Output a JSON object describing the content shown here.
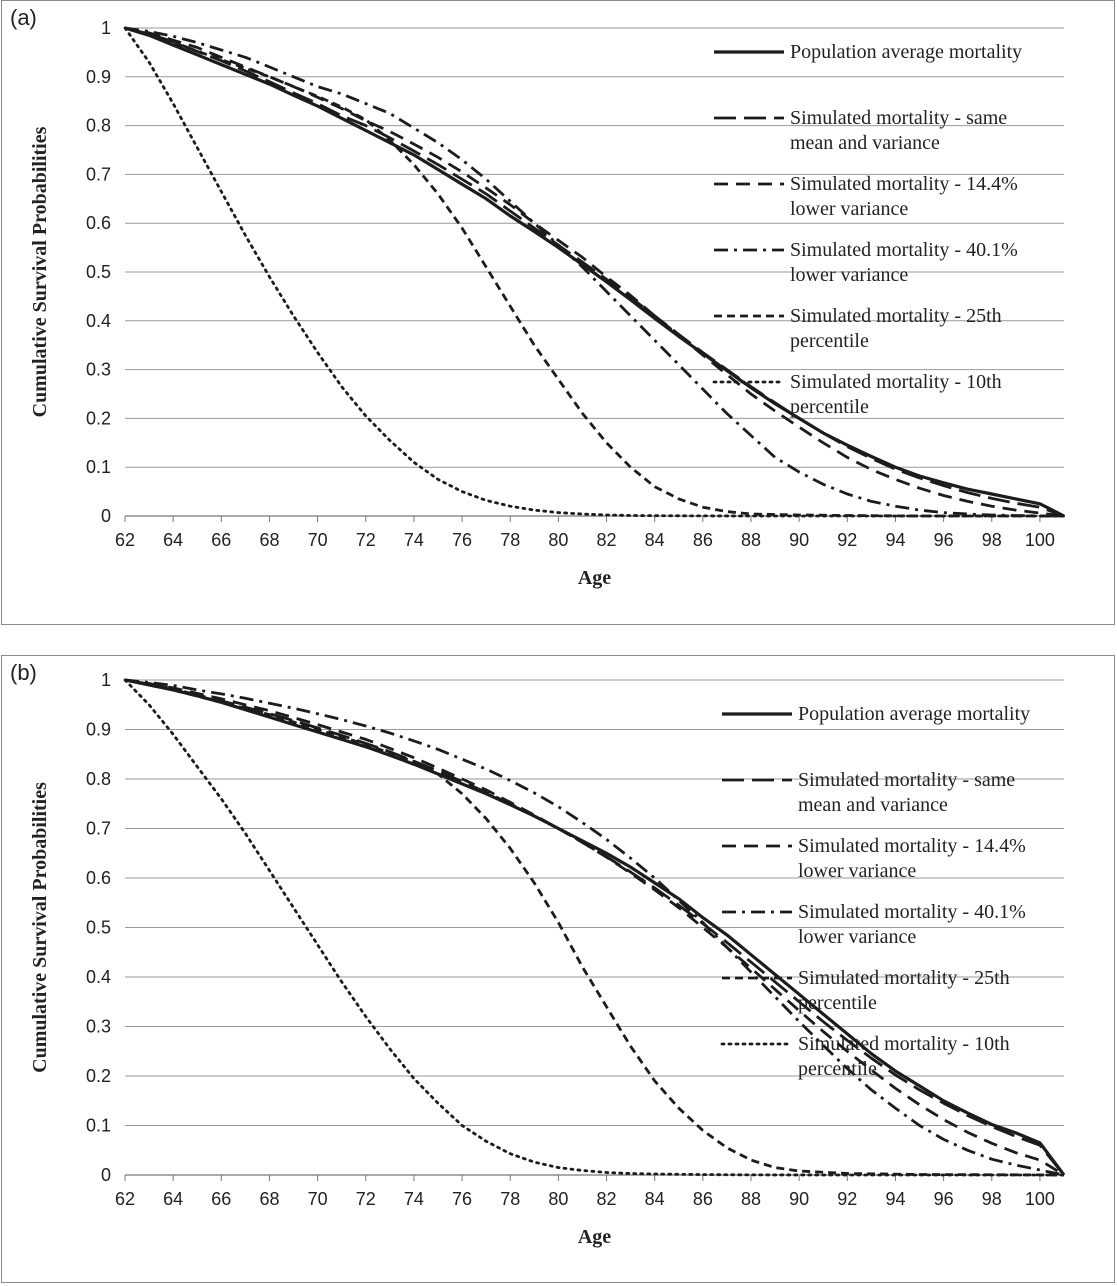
{
  "chart_data": [
    {
      "panel_label": "(a)",
      "type": "line",
      "xlabel": "Age",
      "ylabel": "Cumulative  Survival  Probabilities",
      "xlim": [
        62,
        101
      ],
      "ylim": [
        0,
        1
      ],
      "xticks": [
        "62",
        "64",
        "66",
        "68",
        "70",
        "72",
        "74",
        "76",
        "78",
        "80",
        "82",
        "84",
        "86",
        "88",
        "90",
        "92",
        "94",
        "96",
        "98",
        "100"
      ],
      "yticks": [
        "0",
        "0.1",
        "0.2",
        "0.3",
        "0.4",
        "0.5",
        "0.6",
        "0.7",
        "0.8",
        "0.9",
        "1"
      ],
      "grid": true,
      "legend_position": "top-right",
      "series": [
        {
          "name": "Population average mortality",
          "lines": [
            "Population average mortality"
          ],
          "style": "solid",
          "x": [
            62,
            63,
            64,
            65,
            66,
            67,
            68,
            69,
            70,
            71,
            72,
            73,
            74,
            75,
            76,
            77,
            78,
            79,
            80,
            81,
            82,
            83,
            84,
            85,
            86,
            87,
            88,
            89,
            90,
            91,
            92,
            93,
            94,
            95,
            96,
            97,
            98,
            99,
            100,
            101
          ],
          "y": [
            1.0,
            0.985,
            0.965,
            0.945,
            0.925,
            0.905,
            0.885,
            0.862,
            0.84,
            0.815,
            0.79,
            0.765,
            0.74,
            0.71,
            0.68,
            0.65,
            0.615,
            0.583,
            0.55,
            0.515,
            0.48,
            0.443,
            0.405,
            0.368,
            0.333,
            0.298,
            0.263,
            0.23,
            0.2,
            0.17,
            0.145,
            0.122,
            0.1,
            0.082,
            0.068,
            0.055,
            0.045,
            0.035,
            0.025,
            0.0
          ]
        },
        {
          "name": "Simulated mortality - same mean and variance",
          "lines": [
            "Simulated mortality - same",
            "mean and variance"
          ],
          "style": "longdash",
          "x": [
            62,
            63,
            64,
            65,
            66,
            67,
            68,
            69,
            70,
            71,
            72,
            73,
            74,
            75,
            76,
            77,
            78,
            79,
            80,
            81,
            82,
            83,
            84,
            85,
            86,
            87,
            88,
            89,
            90,
            91,
            92,
            93,
            94,
            95,
            96,
            97,
            98,
            99,
            100,
            101
          ],
          "y": [
            1.0,
            0.988,
            0.972,
            0.952,
            0.933,
            0.912,
            0.89,
            0.867,
            0.845,
            0.82,
            0.8,
            0.775,
            0.748,
            0.72,
            0.69,
            0.66,
            0.625,
            0.59,
            0.555,
            0.52,
            0.485,
            0.448,
            0.41,
            0.372,
            0.335,
            0.3,
            0.265,
            0.232,
            0.2,
            0.17,
            0.142,
            0.118,
            0.096,
            0.078,
            0.062,
            0.048,
            0.036,
            0.026,
            0.018,
            0.0
          ]
        },
        {
          "name": "Simulated mortality - 14.4% lower variance",
          "lines": [
            "Simulated mortality - 14.4%",
            "lower variance"
          ],
          "style": "dash",
          "x": [
            62,
            63,
            64,
            65,
            66,
            67,
            68,
            69,
            70,
            71,
            72,
            73,
            74,
            75,
            76,
            77,
            78,
            79,
            80,
            81,
            82,
            83,
            84,
            85,
            86,
            87,
            88,
            89,
            90,
            91,
            92,
            93,
            94,
            95,
            96,
            97,
            98,
            99,
            100,
            101
          ],
          "y": [
            1.0,
            0.99,
            0.975,
            0.96,
            0.94,
            0.92,
            0.9,
            0.88,
            0.858,
            0.835,
            0.81,
            0.788,
            0.762,
            0.735,
            0.705,
            0.672,
            0.638,
            0.6,
            0.565,
            0.53,
            0.49,
            0.452,
            0.41,
            0.37,
            0.33,
            0.29,
            0.25,
            0.215,
            0.182,
            0.15,
            0.12,
            0.095,
            0.075,
            0.057,
            0.042,
            0.03,
            0.02,
            0.012,
            0.006,
            0.0
          ]
        },
        {
          "name": "Simulated mortality - 40.1% lower variance",
          "lines": [
            "Simulated mortality - 40.1%",
            "lower variance"
          ],
          "style": "dashdot",
          "x": [
            62,
            63,
            64,
            65,
            66,
            67,
            68,
            69,
            70,
            71,
            72,
            73,
            74,
            75,
            76,
            77,
            78,
            79,
            80,
            81,
            82,
            83,
            84,
            85,
            86,
            87,
            88,
            89,
            90,
            91,
            92,
            93,
            94,
            95,
            96,
            97,
            98,
            99,
            100,
            101
          ],
          "y": [
            1.0,
            0.993,
            0.983,
            0.97,
            0.955,
            0.94,
            0.92,
            0.9,
            0.88,
            0.865,
            0.845,
            0.825,
            0.795,
            0.765,
            0.73,
            0.69,
            0.645,
            0.6,
            0.555,
            0.51,
            0.46,
            0.41,
            0.36,
            0.31,
            0.26,
            0.21,
            0.165,
            0.12,
            0.09,
            0.065,
            0.045,
            0.03,
            0.02,
            0.012,
            0.007,
            0.004,
            0.002,
            0.001,
            0.0,
            0.0
          ]
        },
        {
          "name": "Simulated mortality - 25th percentile",
          "lines": [
            "Simulated mortality - 25th",
            "percentile"
          ],
          "style": "shortdash",
          "x": [
            62,
            64,
            66,
            68,
            70,
            71,
            72,
            73,
            74,
            75,
            76,
            77,
            78,
            79,
            80,
            81,
            82,
            83,
            84,
            85,
            86,
            87,
            88,
            90,
            92,
            95,
            101
          ],
          "y": [
            1.0,
            0.97,
            0.935,
            0.9,
            0.86,
            0.838,
            0.812,
            0.77,
            0.72,
            0.66,
            0.59,
            0.51,
            0.43,
            0.35,
            0.28,
            0.21,
            0.15,
            0.1,
            0.06,
            0.035,
            0.018,
            0.009,
            0.004,
            0.002,
            0.001,
            0.0,
            0.0
          ]
        },
        {
          "name": "Simulated mortality - 10th percentile",
          "lines": [
            "Simulated mortality - 10th",
            "percentile"
          ],
          "style": "dotted",
          "x": [
            62,
            63,
            64,
            65,
            66,
            67,
            68,
            69,
            70,
            71,
            72,
            73,
            74,
            75,
            76,
            77,
            78,
            79,
            80,
            81,
            82,
            83,
            84,
            86,
            88,
            92,
            101
          ],
          "y": [
            1.0,
            0.93,
            0.845,
            0.755,
            0.665,
            0.575,
            0.49,
            0.41,
            0.335,
            0.265,
            0.205,
            0.155,
            0.11,
            0.075,
            0.05,
            0.032,
            0.02,
            0.012,
            0.007,
            0.004,
            0.002,
            0.001,
            0.0006,
            0.0002,
            0.0,
            0.0,
            0.0
          ]
        }
      ]
    },
    {
      "panel_label": "(b)",
      "type": "line",
      "xlabel": "Age",
      "ylabel": "Cumulative  Survival  Probabilities",
      "xlim": [
        62,
        101
      ],
      "ylim": [
        0,
        1
      ],
      "xticks": [
        "62",
        "64",
        "66",
        "68",
        "70",
        "72",
        "74",
        "76",
        "78",
        "80",
        "82",
        "84",
        "86",
        "88",
        "90",
        "92",
        "94",
        "96",
        "98",
        "100"
      ],
      "yticks": [
        "0",
        "0.1",
        "0.2",
        "0.3",
        "0.4",
        "0.5",
        "0.6",
        "0.7",
        "0.8",
        "0.9",
        "1"
      ],
      "grid": true,
      "legend_position": "top-right",
      "series": [
        {
          "name": "Population average mortality",
          "lines": [
            "Population average mortality"
          ],
          "style": "solid",
          "x": [
            62,
            63,
            64,
            65,
            66,
            67,
            68,
            69,
            70,
            71,
            72,
            73,
            74,
            75,
            76,
            77,
            78,
            79,
            80,
            81,
            82,
            83,
            84,
            85,
            86,
            87,
            88,
            89,
            90,
            91,
            92,
            93,
            94,
            95,
            96,
            97,
            98,
            99,
            100,
            101
          ],
          "y": [
            1.0,
            0.99,
            0.98,
            0.968,
            0.955,
            0.94,
            0.925,
            0.91,
            0.895,
            0.88,
            0.865,
            0.848,
            0.83,
            0.81,
            0.79,
            0.77,
            0.748,
            0.725,
            0.7,
            0.675,
            0.65,
            0.622,
            0.59,
            0.558,
            0.52,
            0.485,
            0.445,
            0.405,
            0.365,
            0.325,
            0.285,
            0.245,
            0.21,
            0.18,
            0.15,
            0.125,
            0.102,
            0.085,
            0.065,
            0.0
          ]
        },
        {
          "name": "Simulated mortality - same mean and variance",
          "lines": [
            "Simulated mortality - same",
            "mean and variance"
          ],
          "style": "longdash",
          "x": [
            62,
            63,
            64,
            65,
            66,
            67,
            68,
            69,
            70,
            71,
            72,
            73,
            74,
            75,
            76,
            77,
            78,
            79,
            80,
            81,
            82,
            83,
            84,
            85,
            86,
            87,
            88,
            89,
            90,
            91,
            92,
            93,
            94,
            95,
            96,
            97,
            98,
            99,
            100,
            101
          ],
          "y": [
            1.0,
            0.992,
            0.982,
            0.97,
            0.958,
            0.945,
            0.932,
            0.918,
            0.903,
            0.888,
            0.872,
            0.855,
            0.836,
            0.816,
            0.795,
            0.773,
            0.75,
            0.725,
            0.7,
            0.672,
            0.643,
            0.612,
            0.58,
            0.545,
            0.508,
            0.47,
            0.43,
            0.39,
            0.35,
            0.31,
            0.272,
            0.236,
            0.202,
            0.172,
            0.145,
            0.12,
            0.098,
            0.078,
            0.06,
            0.0
          ]
        },
        {
          "name": "Simulated mortality - 14.4% lower variance",
          "lines": [
            "Simulated mortality - 14.4%",
            "lower variance"
          ],
          "style": "dash",
          "x": [
            62,
            63,
            64,
            65,
            66,
            67,
            68,
            69,
            70,
            71,
            72,
            73,
            74,
            75,
            76,
            77,
            78,
            79,
            80,
            81,
            82,
            83,
            84,
            85,
            86,
            87,
            88,
            89,
            90,
            91,
            92,
            93,
            94,
            95,
            96,
            97,
            98,
            99,
            100,
            101
          ],
          "y": [
            1.0,
            0.993,
            0.984,
            0.973,
            0.962,
            0.95,
            0.938,
            0.924,
            0.91,
            0.895,
            0.88,
            0.862,
            0.843,
            0.822,
            0.8,
            0.778,
            0.753,
            0.727,
            0.7,
            0.672,
            0.642,
            0.61,
            0.576,
            0.54,
            0.5,
            0.46,
            0.418,
            0.375,
            0.332,
            0.29,
            0.25,
            0.212,
            0.175,
            0.142,
            0.112,
            0.086,
            0.064,
            0.045,
            0.03,
            0.0
          ]
        },
        {
          "name": "Simulated mortality - 40.1% lower variance",
          "lines": [
            "Simulated mortality - 40.1%",
            "lower variance"
          ],
          "style": "dashdot",
          "x": [
            62,
            63,
            64,
            65,
            66,
            67,
            68,
            69,
            70,
            71,
            72,
            73,
            74,
            75,
            76,
            77,
            78,
            79,
            80,
            81,
            82,
            83,
            84,
            85,
            86,
            87,
            88,
            89,
            90,
            91,
            92,
            93,
            94,
            95,
            96,
            97,
            98,
            99,
            100,
            101
          ],
          "y": [
            1.0,
            0.995,
            0.989,
            0.98,
            0.972,
            0.963,
            0.953,
            0.943,
            0.932,
            0.92,
            0.907,
            0.893,
            0.877,
            0.86,
            0.84,
            0.82,
            0.797,
            0.772,
            0.744,
            0.712,
            0.678,
            0.64,
            0.6,
            0.555,
            0.51,
            0.46,
            0.41,
            0.36,
            0.31,
            0.262,
            0.215,
            0.172,
            0.135,
            0.1,
            0.072,
            0.05,
            0.032,
            0.02,
            0.01,
            0.0
          ]
        },
        {
          "name": "Simulated mortality - 25th percentile",
          "lines": [
            "Simulated mortality - 25th",
            "percentile"
          ],
          "style": "shortdash",
          "x": [
            62,
            64,
            66,
            68,
            70,
            72,
            74,
            75,
            76,
            77,
            78,
            79,
            80,
            81,
            82,
            83,
            84,
            85,
            86,
            87,
            88,
            89,
            90,
            92,
            95,
            101
          ],
          "y": [
            1.0,
            0.98,
            0.955,
            0.93,
            0.9,
            0.87,
            0.835,
            0.81,
            0.77,
            0.72,
            0.66,
            0.59,
            0.51,
            0.42,
            0.34,
            0.26,
            0.19,
            0.135,
            0.09,
            0.055,
            0.03,
            0.015,
            0.008,
            0.003,
            0.001,
            0.0
          ]
        },
        {
          "name": "Simulated mortality - 10th percentile",
          "lines": [
            "Simulated mortality - 10th",
            "percentile"
          ],
          "style": "dotted",
          "x": [
            62,
            63,
            64,
            65,
            66,
            67,
            68,
            69,
            70,
            71,
            72,
            73,
            74,
            75,
            76,
            77,
            78,
            79,
            80,
            81,
            82,
            83,
            84,
            86,
            88,
            92,
            101
          ],
          "y": [
            1.0,
            0.95,
            0.89,
            0.825,
            0.76,
            0.69,
            0.615,
            0.54,
            0.465,
            0.39,
            0.32,
            0.255,
            0.195,
            0.145,
            0.1,
            0.068,
            0.043,
            0.026,
            0.015,
            0.009,
            0.005,
            0.003,
            0.002,
            0.0008,
            0.0003,
            0.0,
            0.0
          ]
        }
      ]
    }
  ]
}
